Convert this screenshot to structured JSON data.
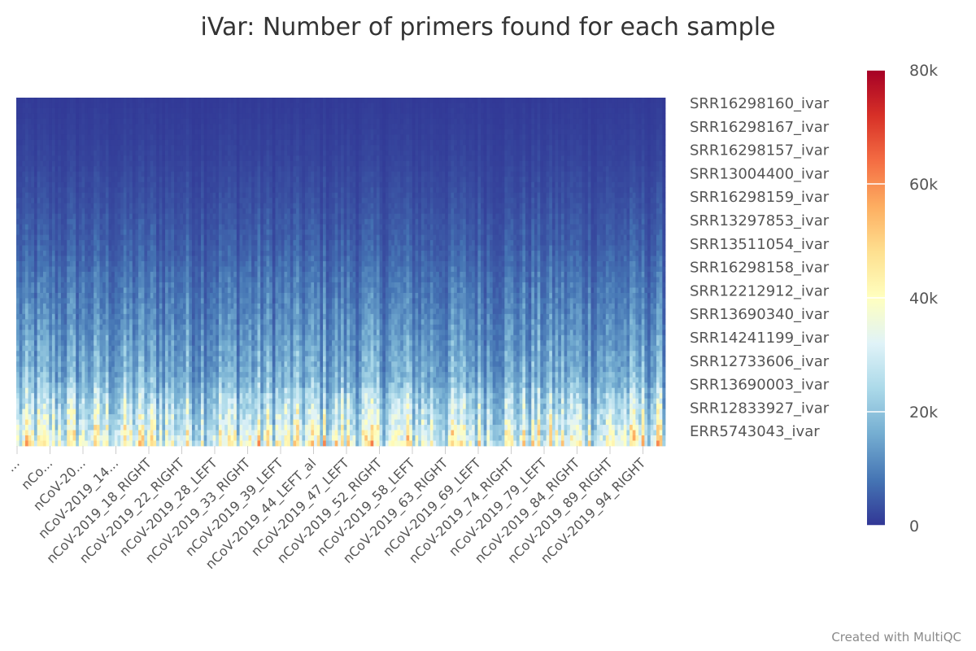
{
  "chart_data": {
    "type": "heatmap",
    "title": "iVar: Number of primers found for each sample",
    "xlabel": "",
    "ylabel": "",
    "x_tick_labels": [
      "...",
      "nCo...",
      "nCoV-20...",
      "nCoV-2019_14...",
      "nCoV-2019_18_RIGHT",
      "nCoV-2019_22_RIGHT",
      "nCoV-2019_28_LEFT",
      "nCoV-2019_33_RIGHT",
      "nCoV-2019_39_LEFT",
      "nCoV-2019_44_LEFT_al",
      "nCoV-2019_47_LEFT",
      "nCoV-2019_52_RIGHT",
      "nCoV-2019_58_LEFT",
      "nCoV-2019_63_RIGHT",
      "nCoV-2019_69_LEFT",
      "nCoV-2019_74_RIGHT",
      "nCoV-2019_79_LEFT",
      "nCoV-2019_84_RIGHT",
      "nCoV-2019_89_RIGHT",
      "nCoV-2019_94_RIGHT"
    ],
    "y_tick_labels": [
      "SRR16298160_ivar",
      "SRR16298167_ivar",
      "SRR16298157_ivar",
      "SRR13004400_ivar",
      "SRR16298159_ivar",
      "SRR13297853_ivar",
      "SRR13511054_ivar",
      "SRR16298158_ivar",
      "SRR12212912_ivar",
      "SRR13690340_ivar",
      "SRR14241199_ivar",
      "SRR12733606_ivar",
      "SRR13690003_ivar",
      "SRR12833927_ivar",
      "ERR5743043_ivar"
    ],
    "n_columns": 218,
    "n_rows": 66,
    "row_level_profile": [
      600,
      700,
      800,
      900,
      1000,
      1100,
      1200,
      1300,
      1400,
      1500,
      1600,
      1700,
      1900,
      2100,
      2300,
      2500,
      2600,
      2800,
      3000,
      3200,
      3400,
      3600,
      4000,
      4200,
      4400,
      4600,
      4800,
      5000,
      5400,
      5800,
      6200,
      6600,
      7000,
      7400,
      7800,
      8200,
      8600,
      9000,
      9400,
      9800,
      10200,
      10600,
      11000,
      11500,
      12000,
      12500,
      13000,
      13500,
      14000,
      14500,
      15000,
      15500,
      16000,
      17000,
      18000,
      20000,
      22000,
      23000,
      24000,
      26000,
      27000,
      28000,
      30000,
      32000,
      34000,
      36000
    ],
    "column_factor_range": [
      0.5,
      1.5
    ],
    "value_range": [
      0,
      80000
    ],
    "colorbar": {
      "tick_labels": [
        "0",
        "20k",
        "40k",
        "60k",
        "80k"
      ],
      "tick_values": [
        0,
        20000,
        40000,
        60000,
        80000
      ],
      "colorscale": [
        {
          "stop": 0.0,
          "color": "#313695"
        },
        {
          "stop": 0.1,
          "color": "#4575b4"
        },
        {
          "stop": 0.2,
          "color": "#74add1"
        },
        {
          "stop": 0.3,
          "color": "#abd9e9"
        },
        {
          "stop": 0.4,
          "color": "#e0f3f8"
        },
        {
          "stop": 0.5,
          "color": "#ffffbf"
        },
        {
          "stop": 0.6,
          "color": "#fee090"
        },
        {
          "stop": 0.7,
          "color": "#fdae61"
        },
        {
          "stop": 0.8,
          "color": "#f46d43"
        },
        {
          "stop": 0.9,
          "color": "#d73027"
        },
        {
          "stop": 1.0,
          "color": "#a50026"
        }
      ]
    },
    "legend": "colorbar at right"
  },
  "credit": "Created with MultiQC"
}
